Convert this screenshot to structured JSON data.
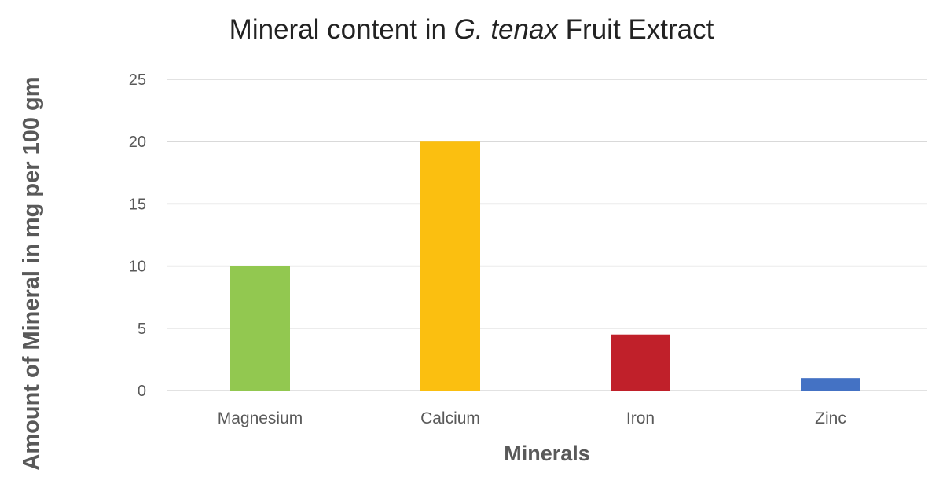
{
  "chart_data": {
    "type": "bar",
    "title_parts": [
      "Mineral content in ",
      "G. tenax",
      " Fruit Extract"
    ],
    "xlabel": "Minerals",
    "ylabel": "Amount of Mineral in mg per 100 gm",
    "categories": [
      "Magnesium",
      "Calcium",
      "Iron",
      "Zinc"
    ],
    "values": [
      10,
      20,
      4.5,
      1
    ],
    "bar_colors": [
      "#92c850",
      "#fbbf10",
      "#c0202a",
      "#4472c4"
    ],
    "ylim": [
      0,
      25
    ],
    "yticks": [
      0,
      5,
      10,
      15,
      20,
      25
    ],
    "grid": true,
    "legend": "none"
  }
}
